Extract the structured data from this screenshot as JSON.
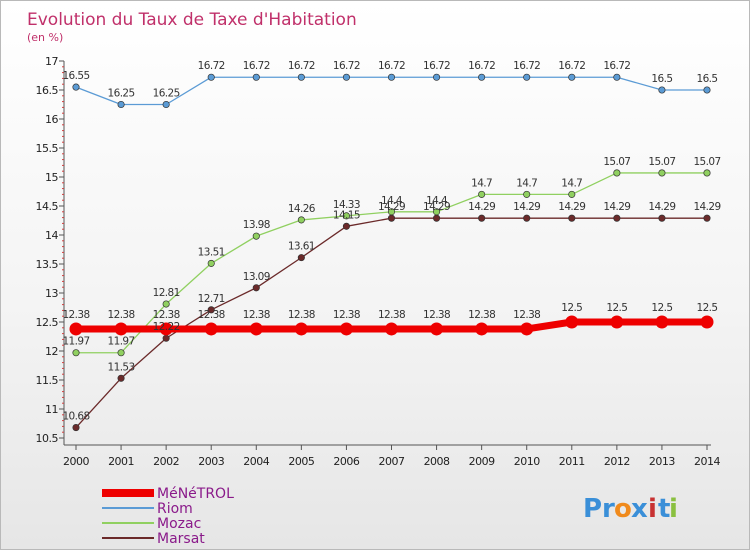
{
  "chart_data": {
    "type": "line",
    "title": "Evolution du Taux de Taxe d'Habitation",
    "subtitle": "(en %)",
    "xlabel": "",
    "ylabel": "",
    "categories": [
      "2000",
      "2001",
      "2002",
      "2003",
      "2004",
      "2005",
      "2006",
      "2007",
      "2008",
      "2009",
      "2010",
      "2011",
      "2012",
      "2013",
      "2014"
    ],
    "ylim": [
      10.5,
      17
    ],
    "yticks": [
      "10.5",
      "11",
      "11.5",
      "12",
      "12.5",
      "13",
      "13.5",
      "14",
      "14.5",
      "15",
      "15.5",
      "16",
      "16.5",
      "17"
    ],
    "grid": false,
    "legend_position": "bottom-left",
    "series": [
      {
        "name": "Riom",
        "color": "#5b9bd5",
        "values": [
          16.55,
          16.25,
          16.25,
          16.72,
          16.72,
          16.72,
          16.72,
          16.72,
          16.72,
          16.72,
          16.72,
          16.72,
          16.72,
          16.5,
          16.5
        ],
        "labels": [
          "16.55",
          "16.25",
          "16.25",
          "16.72",
          "16.72",
          "16.72",
          "16.72",
          "16.72",
          "16.72",
          "16.72",
          "16.72",
          "16.72",
          "16.72",
          "16.5",
          "16.5"
        ]
      },
      {
        "name": "Mozac",
        "color": "#90d060",
        "values": [
          11.97,
          11.97,
          12.81,
          13.51,
          13.98,
          14.26,
          14.33,
          14.4,
          14.4,
          14.7,
          14.7,
          14.7,
          15.07,
          15.07,
          15.07
        ],
        "labels": [
          "11.97",
          "11.97",
          "12.81",
          "13.51",
          "13.98",
          "14.26",
          "14.33",
          "14.4",
          "14.4",
          "14.7",
          "14.7",
          "14.7",
          "15.07",
          "15.07",
          "15.07"
        ]
      },
      {
        "name": "Marsat",
        "color": "#6b2a2a",
        "values": [
          10.68,
          11.53,
          12.22,
          12.71,
          13.09,
          13.61,
          14.15,
          14.29,
          14.29,
          14.29,
          14.29,
          14.29,
          14.29,
          14.29,
          14.29
        ],
        "labels": [
          "10.68",
          "11.53",
          "12.22",
          "12.71",
          "13.09",
          "13.61",
          "14.15",
          "14.29",
          "14.29",
          "14.29",
          "14.29",
          "14.29",
          "14.29",
          "14.29",
          "14.29"
        ]
      },
      {
        "name": "MéNéTROL",
        "color": "#ee0000",
        "values": [
          12.38,
          12.38,
          12.38,
          12.38,
          12.38,
          12.38,
          12.38,
          12.38,
          12.38,
          12.38,
          12.38,
          12.5,
          12.5,
          12.5,
          12.5
        ],
        "labels": [
          "12.38",
          "12.38",
          "12.38",
          "12.38",
          "12.38",
          "12.38",
          "12.38",
          "12.38",
          "12.38",
          "12.38",
          "12.38",
          "12.5",
          "12.5",
          "12.5",
          "12.5"
        ]
      }
    ],
    "legend_order": [
      "MéNéTROL",
      "Riom",
      "Mozac",
      "Marsat"
    ]
  },
  "logo": {
    "letters": [
      "P",
      "r",
      "o",
      "x",
      "i",
      "t",
      "i"
    ],
    "colors": [
      "#3a8fd8",
      "#3a8fd8",
      "#f08a1c",
      "#3a8fd8",
      "#c83232",
      "#3a8fd8",
      "#8ac040"
    ]
  }
}
